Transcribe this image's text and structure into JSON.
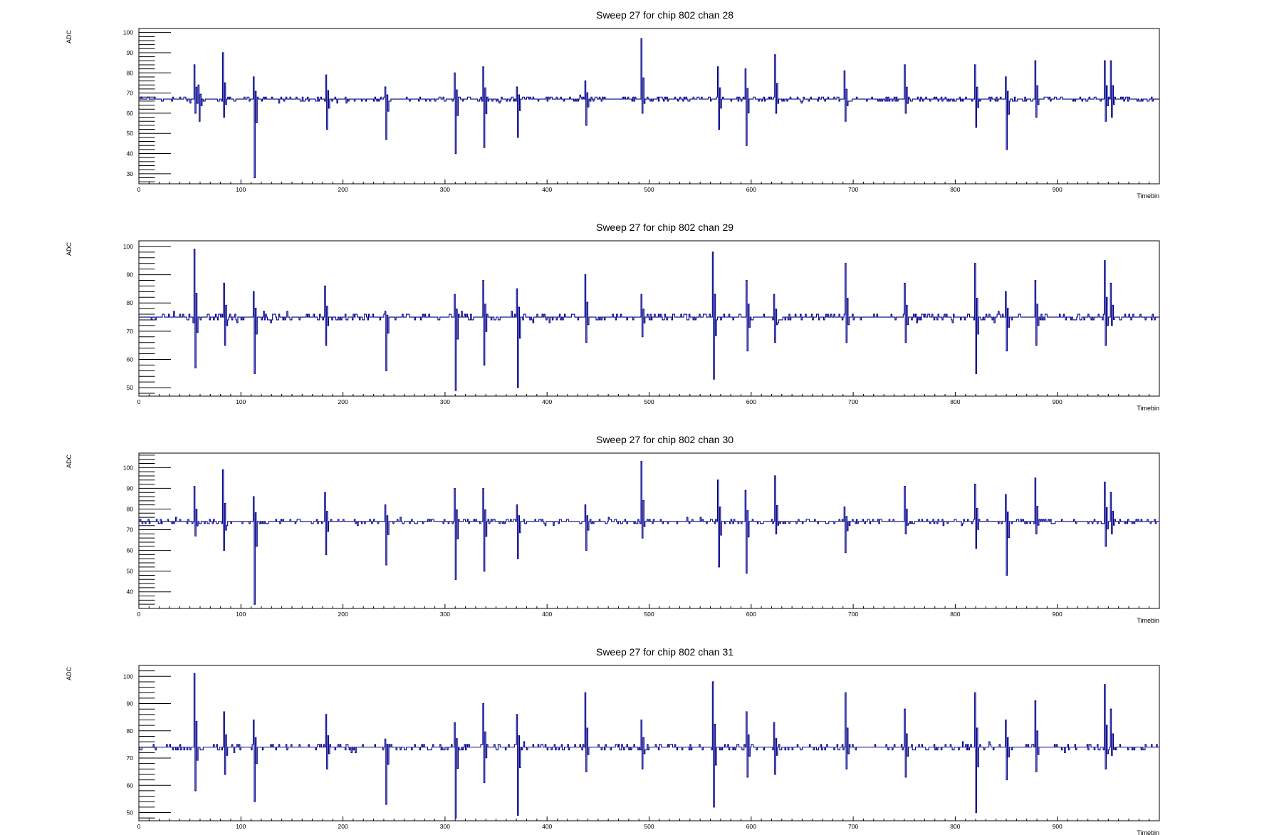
{
  "chart_data": [
    {
      "type": "line",
      "title": "Sweep 27 for chip 802 chan 28",
      "xlabel": "Timebin",
      "ylabel": "ADC",
      "xlim": [
        0,
        1000
      ],
      "ylim": [
        25,
        102
      ],
      "xticks": [
        0,
        100,
        200,
        300,
        400,
        500,
        600,
        700,
        800,
        900
      ],
      "yticks": [
        30,
        40,
        50,
        60,
        70,
        80,
        90,
        100
      ],
      "yminor_step": 2,
      "baseline": 67,
      "color": "#00008b",
      "events": [
        [
          54,
          84,
          60
        ],
        [
          58,
          74,
          56
        ],
        [
          82,
          90,
          58
        ],
        [
          112,
          78,
          28
        ],
        [
          183,
          79,
          52
        ],
        [
          241,
          73,
          47
        ],
        [
          309,
          80,
          40
        ],
        [
          337,
          83,
          43
        ],
        [
          370,
          73,
          48
        ],
        [
          437,
          76,
          54
        ],
        [
          492,
          97,
          60
        ],
        [
          567,
          83,
          52
        ],
        [
          594,
          82,
          44
        ],
        [
          623,
          89,
          60
        ],
        [
          691,
          81,
          56
        ],
        [
          750,
          84,
          60
        ],
        [
          819,
          84,
          53
        ],
        [
          849,
          78,
          42
        ],
        [
          878,
          86,
          58
        ],
        [
          946,
          86,
          56
        ],
        [
          952,
          86,
          58
        ]
      ]
    },
    {
      "type": "line",
      "title": "Sweep 27 for chip 802 chan 29",
      "xlabel": "Timebin",
      "ylabel": "ADC",
      "xlim": [
        0,
        1000
      ],
      "ylim": [
        47,
        102
      ],
      "xticks": [
        0,
        100,
        200,
        300,
        400,
        500,
        600,
        700,
        800,
        900
      ],
      "yticks": [
        50,
        60,
        70,
        80,
        90,
        100
      ],
      "yminor_step": 2,
      "baseline": 75,
      "color": "#00008b",
      "events": [
        [
          54,
          99,
          57
        ],
        [
          83,
          87,
          65
        ],
        [
          112,
          84,
          55
        ],
        [
          182,
          86,
          65
        ],
        [
          241,
          77,
          56
        ],
        [
          309,
          83,
          49
        ],
        [
          337,
          88,
          58
        ],
        [
          370,
          85,
          50
        ],
        [
          437,
          90,
          66
        ],
        [
          492,
          83,
          68
        ],
        [
          562,
          98,
          53
        ],
        [
          595,
          88,
          63
        ],
        [
          622,
          83,
          66
        ],
        [
          692,
          94,
          66
        ],
        [
          750,
          87,
          66
        ],
        [
          819,
          94,
          55
        ],
        [
          849,
          84,
          63
        ],
        [
          878,
          88,
          65
        ],
        [
          946,
          95,
          65
        ],
        [
          952,
          87,
          72
        ]
      ]
    },
    {
      "type": "line",
      "title": "Sweep 27 for chip 802 chan 30",
      "xlabel": "Timebin",
      "ylabel": "ADC",
      "xlim": [
        0,
        1000
      ],
      "ylim": [
        32,
        107
      ],
      "xticks": [
        0,
        100,
        200,
        300,
        400,
        500,
        600,
        700,
        800,
        900
      ],
      "yticks": [
        40,
        50,
        60,
        70,
        80,
        90,
        100
      ],
      "yminor_step": 2,
      "baseline": 74,
      "color": "#00008b",
      "events": [
        [
          54,
          91,
          67
        ],
        [
          82,
          99,
          60
        ],
        [
          112,
          86,
          34
        ],
        [
          182,
          88,
          58
        ],
        [
          241,
          82,
          53
        ],
        [
          309,
          90,
          46
        ],
        [
          337,
          90,
          50
        ],
        [
          370,
          82,
          56
        ],
        [
          437,
          82,
          60
        ],
        [
          492,
          103,
          66
        ],
        [
          567,
          94,
          52
        ],
        [
          594,
          89,
          49
        ],
        [
          623,
          96,
          68
        ],
        [
          691,
          81,
          59
        ],
        [
          750,
          91,
          68
        ],
        [
          819,
          92,
          61
        ],
        [
          849,
          87,
          48
        ],
        [
          878,
          95,
          68
        ],
        [
          946,
          93,
          62
        ],
        [
          952,
          88,
          68
        ]
      ]
    },
    {
      "type": "line",
      "title": "Sweep 27 for chip 802 chan 31",
      "xlabel": "Timebin",
      "ylabel": "ADC",
      "xlim": [
        0,
        1000
      ],
      "ylim": [
        47,
        104
      ],
      "xticks": [
        0,
        100,
        200,
        300,
        400,
        500,
        600,
        700,
        800,
        900
      ],
      "yticks": [
        50,
        60,
        70,
        80,
        90,
        100
      ],
      "yminor_step": 2,
      "baseline": 74,
      "color": "#00008b",
      "events": [
        [
          54,
          101,
          58
        ],
        [
          83,
          87,
          64
        ],
        [
          112,
          84,
          54
        ],
        [
          183,
          86,
          66
        ],
        [
          241,
          77,
          53
        ],
        [
          309,
          83,
          48
        ],
        [
          337,
          90,
          61
        ],
        [
          370,
          86,
          49
        ],
        [
          437,
          94,
          65
        ],
        [
          492,
          84,
          66
        ],
        [
          562,
          98,
          52
        ],
        [
          595,
          87,
          63
        ],
        [
          622,
          83,
          64
        ],
        [
          692,
          94,
          66
        ],
        [
          750,
          88,
          63
        ],
        [
          819,
          94,
          50
        ],
        [
          849,
          84,
          62
        ],
        [
          878,
          91,
          65
        ],
        [
          946,
          97,
          66
        ],
        [
          952,
          88,
          71
        ]
      ]
    }
  ]
}
